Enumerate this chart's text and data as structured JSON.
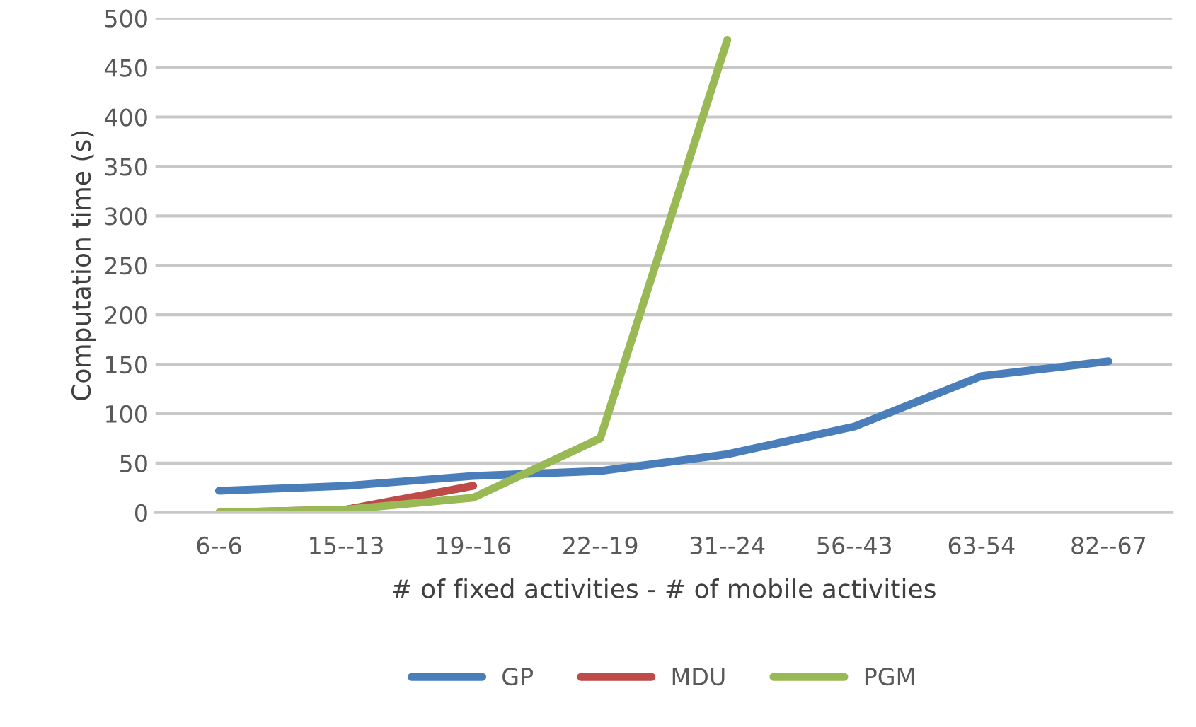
{
  "chart_data": {
    "type": "line",
    "xlabel": "# of fixed activities - # of mobile activities",
    "ylabel": "Computation time (s)",
    "categories": [
      "6--6",
      "15--13",
      "19--16",
      "22--19",
      "31--24",
      "56--43",
      "63-54",
      "82--67"
    ],
    "series": [
      {
        "name": "GP",
        "color": "#4a7ebb",
        "values": [
          22,
          27,
          37,
          42,
          59,
          87,
          138,
          153
        ]
      },
      {
        "name": "MDU",
        "color": "#be4b48",
        "values": [
          0,
          3,
          27,
          null,
          null,
          null,
          null,
          null
        ]
      },
      {
        "name": "PGM",
        "color": "#98b954",
        "values": [
          0,
          3,
          15,
          75,
          478,
          null,
          null,
          null
        ]
      }
    ],
    "ylim": [
      0,
      500
    ],
    "yticks": [
      0,
      50,
      100,
      150,
      200,
      250,
      300,
      350,
      400,
      450,
      500
    ],
    "grid": "y",
    "legend": "bottom",
    "marker": "none",
    "line_style": "solid"
  }
}
